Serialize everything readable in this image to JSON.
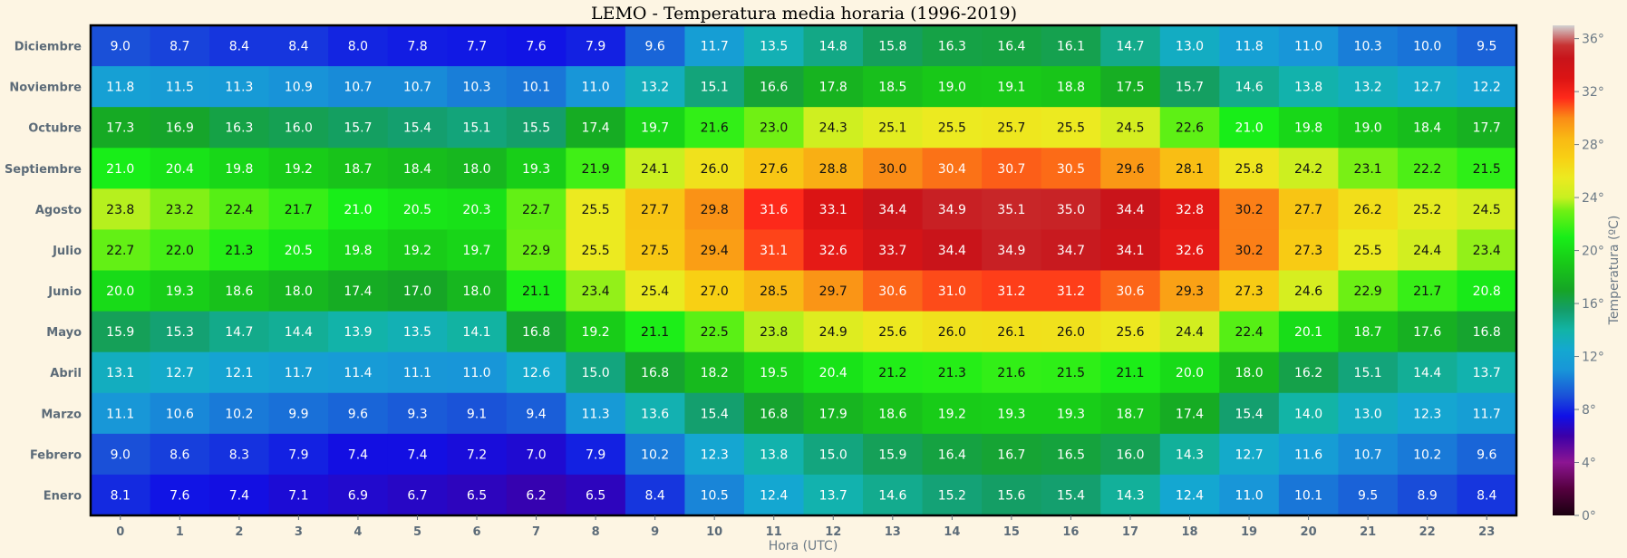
{
  "chart_data": {
    "type": "heatmap",
    "title": "LEMO - Temperatura media horaria (1996-2019)",
    "xlabel": "Hora (UTC)",
    "ylabel": "",
    "x": [
      "0",
      "1",
      "2",
      "3",
      "4",
      "5",
      "6",
      "7",
      "8",
      "9",
      "10",
      "11",
      "12",
      "13",
      "14",
      "15",
      "16",
      "17",
      "18",
      "19",
      "20",
      "21",
      "22",
      "23"
    ],
    "y": [
      "Diciembre",
      "Noviembre",
      "Octubre",
      "Septiembre",
      "Agosto",
      "Julio",
      "Junio",
      "Mayo",
      "Abril",
      "Marzo",
      "Febrero",
      "Enero"
    ],
    "values": [
      [
        9.0,
        8.7,
        8.4,
        8.4,
        8.0,
        7.8,
        7.7,
        7.6,
        7.9,
        9.6,
        11.7,
        13.5,
        14.8,
        15.8,
        16.3,
        16.4,
        16.1,
        14.7,
        13.0,
        11.8,
        11.0,
        10.3,
        10.0,
        9.5
      ],
      [
        11.8,
        11.5,
        11.3,
        10.9,
        10.7,
        10.7,
        10.3,
        10.1,
        11.0,
        13.2,
        15.1,
        16.6,
        17.8,
        18.5,
        19.0,
        19.1,
        18.8,
        17.5,
        15.7,
        14.6,
        13.8,
        13.2,
        12.7,
        12.2
      ],
      [
        17.3,
        16.9,
        16.3,
        16.0,
        15.7,
        15.4,
        15.1,
        15.5,
        17.4,
        19.7,
        21.6,
        23.0,
        24.3,
        25.1,
        25.5,
        25.7,
        25.5,
        24.5,
        22.6,
        21.0,
        19.8,
        19.0,
        18.4,
        17.7
      ],
      [
        21.0,
        20.4,
        19.8,
        19.2,
        18.7,
        18.4,
        18.0,
        19.3,
        21.9,
        24.1,
        26.0,
        27.6,
        28.8,
        30.0,
        30.4,
        30.7,
        30.5,
        29.6,
        28.1,
        25.8,
        24.2,
        23.1,
        22.2,
        21.5
      ],
      [
        23.8,
        23.2,
        22.4,
        21.7,
        21.0,
        20.5,
        20.3,
        22.7,
        25.5,
        27.7,
        29.8,
        31.6,
        33.1,
        34.4,
        34.9,
        35.1,
        35.0,
        34.4,
        32.8,
        30.2,
        27.7,
        26.2,
        25.2,
        24.5
      ],
      [
        22.7,
        22.0,
        21.3,
        20.5,
        19.8,
        19.2,
        19.7,
        22.9,
        25.5,
        27.5,
        29.4,
        31.1,
        32.6,
        33.7,
        34.4,
        34.9,
        34.7,
        34.1,
        32.6,
        30.2,
        27.3,
        25.5,
        24.4,
        23.4
      ],
      [
        20.0,
        19.3,
        18.6,
        18.0,
        17.4,
        17.0,
        18.0,
        21.1,
        23.4,
        25.4,
        27.0,
        28.5,
        29.7,
        30.6,
        31.0,
        31.2,
        31.2,
        30.6,
        29.3,
        27.3,
        24.6,
        22.9,
        21.7,
        20.8
      ],
      [
        15.9,
        15.3,
        14.7,
        14.4,
        13.9,
        13.5,
        14.1,
        16.8,
        19.2,
        21.1,
        22.5,
        23.8,
        24.9,
        25.6,
        26.0,
        26.1,
        26.0,
        25.6,
        24.4,
        22.4,
        20.1,
        18.7,
        17.6,
        16.8
      ],
      [
        13.1,
        12.7,
        12.1,
        11.7,
        11.4,
        11.1,
        11.0,
        12.6,
        15.0,
        16.8,
        18.2,
        19.5,
        20.4,
        21.2,
        21.3,
        21.6,
        21.5,
        21.1,
        20.0,
        18.0,
        16.2,
        15.1,
        14.4,
        13.7
      ],
      [
        11.1,
        10.6,
        10.2,
        9.9,
        9.6,
        9.3,
        9.1,
        9.4,
        11.3,
        13.6,
        15.4,
        16.8,
        17.9,
        18.6,
        19.2,
        19.3,
        19.3,
        18.7,
        17.4,
        15.4,
        14.0,
        13.0,
        12.3,
        11.7
      ],
      [
        9.0,
        8.6,
        8.3,
        7.9,
        7.4,
        7.4,
        7.2,
        7.0,
        7.9,
        10.2,
        12.3,
        13.8,
        15.0,
        15.9,
        16.4,
        16.7,
        16.5,
        16.0,
        14.3,
        12.7,
        11.6,
        10.7,
        10.2,
        9.6
      ],
      [
        8.1,
        7.6,
        7.4,
        7.1,
        6.9,
        6.7,
        6.5,
        6.2,
        6.5,
        8.4,
        10.5,
        12.4,
        13.7,
        14.6,
        15.2,
        15.6,
        15.4,
        14.3,
        12.4,
        11.0,
        10.1,
        9.5,
        8.9,
        8.4
      ]
    ],
    "colorbar": {
      "label": "Temperatura (ºC)",
      "range": [
        0,
        37
      ],
      "ticks": [
        0,
        4,
        8,
        12,
        16,
        20,
        24,
        28,
        32,
        36
      ],
      "tick_labels": [
        "0°",
        "4°",
        "8°",
        "12°",
        "16°",
        "20°",
        "24°",
        "28°",
        "32°",
        "36°"
      ]
    },
    "grid": false,
    "legend": "none"
  }
}
